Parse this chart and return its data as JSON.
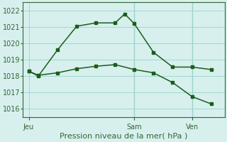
{
  "line1_x": [
    0,
    0.5,
    1.5,
    2.5,
    3.5,
    4.5,
    5,
    5.5,
    6.5,
    7.5,
    8.5,
    9.5
  ],
  "line1_y": [
    1018.3,
    1018.0,
    1019.6,
    1021.05,
    1021.25,
    1021.25,
    1021.8,
    1021.2,
    1019.45,
    1018.55,
    1018.55,
    1018.4
  ],
  "line2_x": [
    0,
    0.5,
    1.5,
    2.5,
    3.5,
    4.5,
    5.5,
    6.5,
    7.5,
    8.5,
    9.5
  ],
  "line2_y": [
    1018.3,
    1018.05,
    1018.2,
    1018.45,
    1018.6,
    1018.7,
    1018.4,
    1018.2,
    1017.6,
    1016.75,
    1016.3
  ],
  "line_color": "#1a5e1a",
  "bg_color": "#d7f0ee",
  "grid_color": "#a0d8d0",
  "axis_color": "#336633",
  "ylim": [
    1015.5,
    1022.5
  ],
  "yticks": [
    1016,
    1017,
    1018,
    1019,
    1020,
    1021,
    1022
  ],
  "xlabel": "Pression niveau de la mer( hPa )",
  "jeu_x": 0,
  "sam_x": 5.5,
  "ven_x": 8.5,
  "xlim": [
    -0.3,
    10.2
  ],
  "vline_positions": [
    5.5,
    8.5
  ],
  "tick_fontsize": 7,
  "xlabel_fontsize": 8
}
